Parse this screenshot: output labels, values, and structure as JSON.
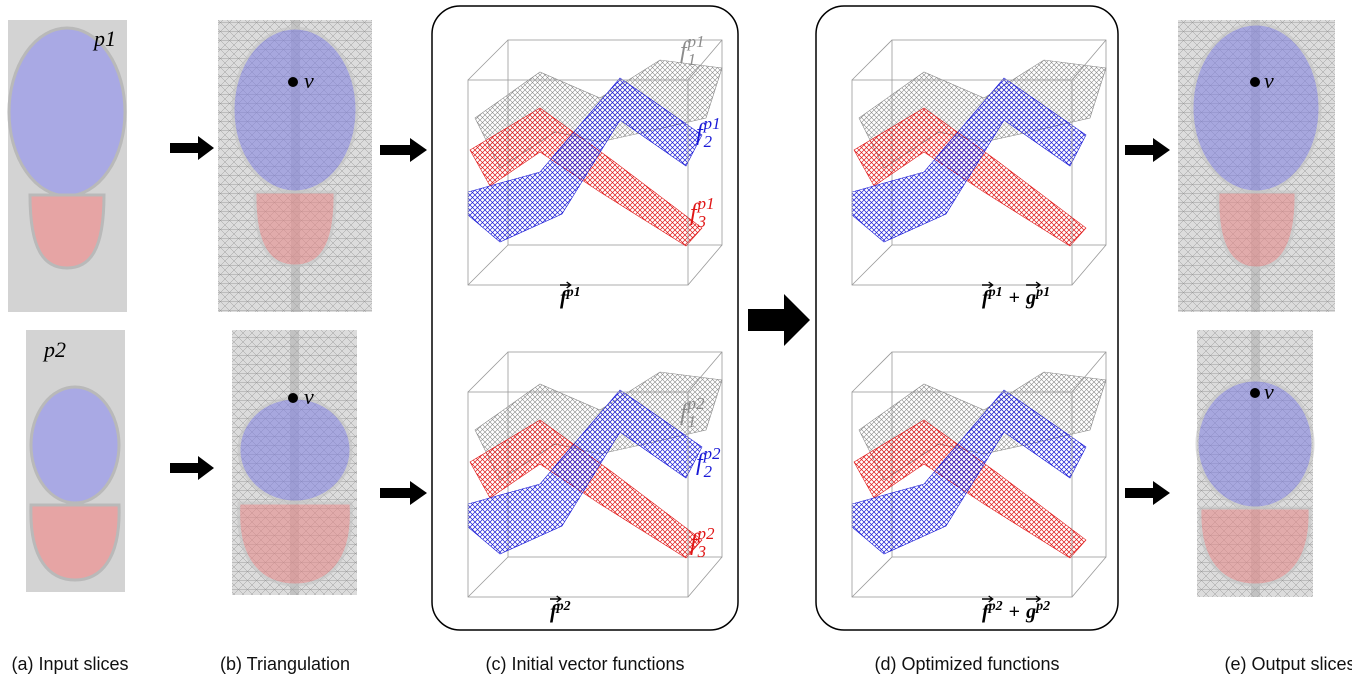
{
  "input_slices": {
    "labels": [
      "p1",
      "p2"
    ]
  },
  "triangulation": {
    "vertex_labels": [
      "v",
      "v"
    ]
  },
  "initial_functions": {
    "plots": [
      {
        "components": [
          {
            "base": "f",
            "sub": "1",
            "sup": "p1"
          },
          {
            "base": "f",
            "sub": "2",
            "sup": "p1"
          },
          {
            "base": "f",
            "sub": "3",
            "sup": "p1"
          }
        ],
        "vector": {
          "terms": [
            {
              "base": "f",
              "sup": "p1"
            }
          ]
        }
      },
      {
        "components": [
          {
            "base": "f",
            "sub": "1",
            "sup": "p2"
          },
          {
            "base": "f",
            "sub": "2",
            "sup": "p2"
          },
          {
            "base": "f",
            "sub": "3",
            "sup": "p2"
          }
        ],
        "vector": {
          "terms": [
            {
              "base": "f",
              "sup": "p2"
            }
          ]
        }
      }
    ]
  },
  "optimized_functions": {
    "plots": [
      {
        "vector": {
          "terms": [
            {
              "base": "f",
              "sup": "p1"
            },
            {
              "base": "g",
              "sup": "p1"
            }
          ],
          "operator": "+"
        }
      },
      {
        "vector": {
          "terms": [
            {
              "base": "f",
              "sup": "p2"
            },
            {
              "base": "g",
              "sup": "p2"
            }
          ],
          "operator": "+"
        }
      }
    ]
  },
  "output_slices": {
    "vertex_labels": [
      "v",
      "v"
    ]
  },
  "captions": [
    "(a) Input slices",
    "(b) Triangulation",
    "(c) Initial vector functions",
    "(d) Optimized functions",
    "(e) Output slices"
  ]
}
